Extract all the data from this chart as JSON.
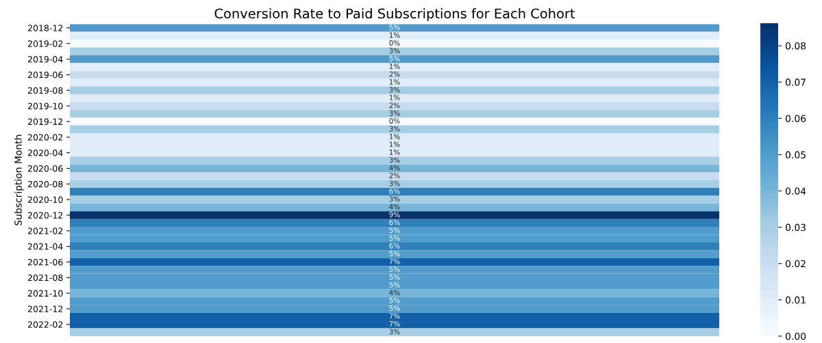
{
  "chart_data": {
    "type": "heatmap",
    "title": "Conversion Rate to Paid Subscriptions for Each Cohort",
    "ylabel": "Subscription Month",
    "categories": [
      null
    ],
    "y_categories": [
      "2018-12",
      null,
      "2019-02",
      null,
      "2019-04",
      null,
      "2019-06",
      null,
      "2019-08",
      null,
      "2019-10",
      null,
      "2019-12",
      null,
      "2020-02",
      null,
      "2020-04",
      null,
      "2020-06",
      null,
      "2020-08",
      null,
      "2020-10",
      null,
      "2020-12",
      null,
      "2021-02",
      null,
      "2021-04",
      null,
      "2021-06",
      null,
      "2021-08",
      null,
      "2021-10",
      null,
      "2021-12",
      null,
      "2022-02",
      null
    ],
    "cells": [
      [
        0.05
      ],
      [
        0.01
      ],
      [
        0.0
      ],
      [
        0.03
      ],
      [
        0.05
      ],
      [
        0.01
      ],
      [
        0.02
      ],
      [
        0.01
      ],
      [
        0.03
      ],
      [
        0.01
      ],
      [
        0.02
      ],
      [
        0.03
      ],
      [
        0.0
      ],
      [
        0.03
      ],
      [
        0.01
      ],
      [
        0.01
      ],
      [
        0.01
      ],
      [
        0.03
      ],
      [
        0.04
      ],
      [
        0.02
      ],
      [
        0.03
      ],
      [
        0.06
      ],
      [
        0.03
      ],
      [
        0.04
      ],
      [
        0.086
      ],
      [
        0.06
      ],
      [
        0.05
      ],
      [
        0.05
      ],
      [
        0.06
      ],
      [
        0.05
      ],
      [
        0.07
      ],
      [
        0.05
      ],
      [
        0.05
      ],
      [
        0.05
      ],
      [
        0.04
      ],
      [
        0.05
      ],
      [
        0.05
      ],
      [
        0.07
      ],
      [
        0.07
      ],
      [
        0.03
      ]
    ],
    "cell_labels": [
      [
        "5%"
      ],
      [
        "1%"
      ],
      [
        "0%"
      ],
      [
        "3%"
      ],
      [
        "5%"
      ],
      [
        "1%"
      ],
      [
        "2%"
      ],
      [
        "1%"
      ],
      [
        "3%"
      ],
      [
        "1%"
      ],
      [
        "2%"
      ],
      [
        "3%"
      ],
      [
        "0%"
      ],
      [
        "3%"
      ],
      [
        "1%"
      ],
      [
        "1%"
      ],
      [
        "1%"
      ],
      [
        "3%"
      ],
      [
        "4%"
      ],
      [
        "2%"
      ],
      [
        "3%"
      ],
      [
        "6%"
      ],
      [
        "3%"
      ],
      [
        "4%"
      ],
      [
        "9%"
      ],
      [
        "6%"
      ],
      [
        "5%"
      ],
      [
        "5%"
      ],
      [
        "6%"
      ],
      [
        "5%"
      ],
      [
        "7%"
      ],
      [
        "5%"
      ],
      [
        "5%"
      ],
      [
        "5%"
      ],
      [
        "4%"
      ],
      [
        "5%"
      ],
      [
        "5%"
      ],
      [
        "7%"
      ],
      [
        "7%"
      ],
      [
        "3%"
      ]
    ],
    "clim": [
      0.0,
      0.086
    ],
    "cticks": [
      {
        "value": 0.0,
        "label": "0.00"
      },
      0.01,
      0.02,
      0.03,
      0.04,
      0.05,
      0.06,
      0.07,
      0.08
    ]
  }
}
